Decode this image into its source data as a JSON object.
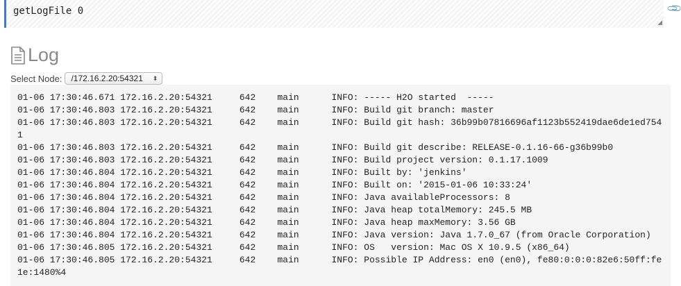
{
  "command": {
    "text": "getLogFile 0",
    "attach_icon": "paperclip-icon"
  },
  "heading": {
    "icon": "document-icon",
    "title": "Log"
  },
  "node_select": {
    "label": "Select Node:",
    "value": "/172.16.2.20:54321"
  },
  "log": [
    {
      "time": "01-06 17:30:46.671",
      "node": "172.16.2.20:54321",
      "pid": "642",
      "thread": "main",
      "message": "INFO: ----- H2O started  -----"
    },
    {
      "time": "01-06 17:30:46.803",
      "node": "172.16.2.20:54321",
      "pid": "642",
      "thread": "main",
      "message": "INFO: Build git branch: master"
    },
    {
      "time": "01-06 17:30:46.803",
      "node": "172.16.2.20:54321",
      "pid": "642",
      "thread": "main",
      "message": "INFO: Build git hash: 36b99b07816696af1123b552419dae6de1ed7541"
    },
    {
      "time": "01-06 17:30:46.803",
      "node": "172.16.2.20:54321",
      "pid": "642",
      "thread": "main",
      "message": "INFO: Build git describe: RELEASE-0.1.16-66-g36b99b0"
    },
    {
      "time": "01-06 17:30:46.803",
      "node": "172.16.2.20:54321",
      "pid": "642",
      "thread": "main",
      "message": "INFO: Build project version: 0.1.17.1009"
    },
    {
      "time": "01-06 17:30:46.804",
      "node": "172.16.2.20:54321",
      "pid": "642",
      "thread": "main",
      "message": "INFO: Built by: 'jenkins'"
    },
    {
      "time": "01-06 17:30:46.804",
      "node": "172.16.2.20:54321",
      "pid": "642",
      "thread": "main",
      "message": "INFO: Built on: '2015-01-06 10:33:24'"
    },
    {
      "time": "01-06 17:30:46.804",
      "node": "172.16.2.20:54321",
      "pid": "642",
      "thread": "main",
      "message": "INFO: Java availableProcessors: 8"
    },
    {
      "time": "01-06 17:30:46.804",
      "node": "172.16.2.20:54321",
      "pid": "642",
      "thread": "main",
      "message": "INFO: Java heap totalMemory: 245.5 MB"
    },
    {
      "time": "01-06 17:30:46.804",
      "node": "172.16.2.20:54321",
      "pid": "642",
      "thread": "main",
      "message": "INFO: Java heap maxMemory: 3.56 GB"
    },
    {
      "time": "01-06 17:30:46.804",
      "node": "172.16.2.20:54321",
      "pid": "642",
      "thread": "main",
      "message": "INFO: Java version: Java 1.7.0_67 (from Oracle Corporation)"
    },
    {
      "time": "01-06 17:30:46.805",
      "node": "172.16.2.20:54321",
      "pid": "642",
      "thread": "main",
      "message": "INFO: OS   version: Mac OS X 10.9.5 (x86_64)"
    },
    {
      "time": "01-06 17:30:46.805",
      "node": "172.16.2.20:54321",
      "pid": "642",
      "thread": "main",
      "message": "INFO: Possible IP Address: en0 (en0), fe80:0:0:0:82e6:50ff:fe1e:1480%4"
    }
  ]
}
